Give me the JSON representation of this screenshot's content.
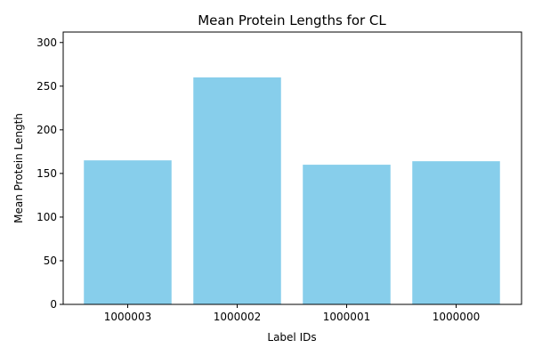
{
  "chart_data": {
    "type": "bar",
    "title": "Mean Protein Lengths for CL",
    "xlabel": "Label IDs",
    "ylabel": "Mean Protein Length",
    "categories": [
      "1000003",
      "1000002",
      "1000001",
      "1000000"
    ],
    "values": [
      165,
      260,
      160,
      164
    ],
    "ylim": [
      0,
      312
    ],
    "yticks": [
      0,
      50,
      100,
      150,
      200,
      250,
      300
    ],
    "bar_color": "#87ceeb",
    "grid": false,
    "legend": "none"
  }
}
